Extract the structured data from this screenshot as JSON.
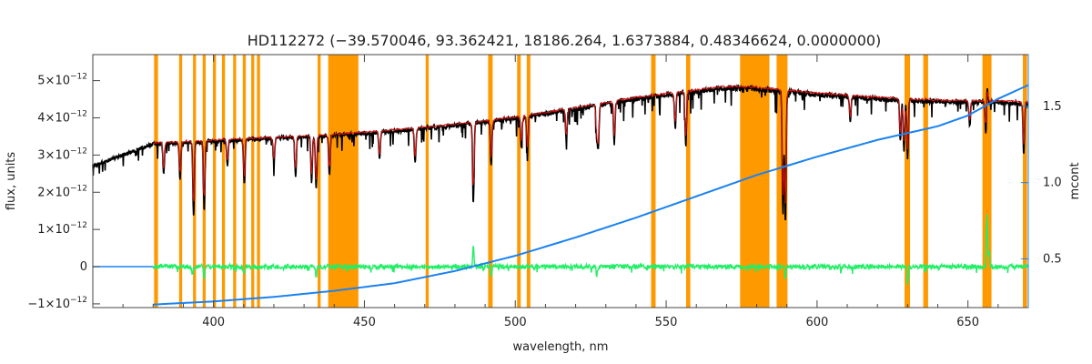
{
  "chart_data": {
    "type": "line",
    "title": "HD112272   (−39.570046, 93.362421, 18186.264, 1.6373884, 0.48346624, 0.0000000)",
    "xlabel": "wavelength, nm",
    "ylabel_left": "flux, units",
    "ylabel_right": "mcont",
    "xlim": [
      360,
      670
    ],
    "ylim_left": [
      -1.1e-12,
      5.7e-12
    ],
    "ylim_right": [
      0.18,
      1.84
    ],
    "x_ticks": [
      400,
      450,
      500,
      550,
      600,
      650
    ],
    "x_tick_labels": [
      "400",
      "450",
      "500",
      "550",
      "600",
      "650"
    ],
    "y_left_ticks": [
      -1e-12,
      0,
      1e-12,
      2e-12,
      3e-12,
      4e-12,
      5e-12
    ],
    "y_left_tick_labels": [
      {
        "mant": "−1×10",
        "exp": "−12"
      },
      {
        "mant": "0",
        "exp": ""
      },
      {
        "mant": "1×10",
        "exp": "−12"
      },
      {
        "mant": "2×10",
        "exp": "−12"
      },
      {
        "mant": "3×10",
        "exp": "−12"
      },
      {
        "mant": "4×10",
        "exp": "−12"
      },
      {
        "mant": "5×10",
        "exp": "−12"
      }
    ],
    "y_right_ticks": [
      0.5,
      1.0,
      1.5
    ],
    "y_right_tick_labels": [
      "0.5",
      "1.0",
      "1.5"
    ],
    "masked_regions": [
      [
        380.3,
        381.6
      ],
      [
        388.6,
        389.6
      ],
      [
        393.2,
        394.2
      ],
      [
        396.4,
        397.4
      ],
      [
        399.8,
        400.8
      ],
      [
        402.8,
        403.8
      ],
      [
        406.5,
        407.5
      ],
      [
        409.7,
        410.7
      ],
      [
        412.5,
        413.5
      ],
      [
        414.4,
        415.4
      ],
      [
        434.5,
        435.5
      ],
      [
        438.0,
        448.0
      ],
      [
        470.3,
        471.3
      ],
      [
        491.0,
        492.5
      ],
      [
        500.6,
        501.8
      ],
      [
        503.8,
        505.0
      ],
      [
        545.0,
        546.5
      ],
      [
        556.6,
        558.0
      ],
      [
        574.5,
        584.2
      ],
      [
        586.6,
        590.2
      ],
      [
        629.0,
        630.8
      ],
      [
        635.2,
        636.8
      ],
      [
        654.8,
        657.8
      ],
      [
        668.2,
        669.6
      ]
    ],
    "continuum": {
      "name": "mcont",
      "axis": "right",
      "x": [
        360,
        380,
        400,
        420,
        440,
        460,
        480,
        500,
        520,
        540,
        560,
        580,
        600,
        620,
        640,
        650,
        660,
        670
      ],
      "y": [
        0.46,
        0.2,
        0.22,
        0.25,
        0.29,
        0.34,
        0.42,
        0.52,
        0.64,
        0.77,
        0.91,
        1.05,
        1.17,
        1.28,
        1.37,
        1.44,
        1.55,
        1.64
      ]
    },
    "model_fit": {
      "color": "#dd1111",
      "x": [
        380,
        400,
        420,
        440,
        460,
        480,
        500,
        520,
        540,
        560,
        570,
        580,
        600,
        620,
        640,
        660,
        670
      ],
      "y": [
        3.35e-12,
        3.42e-12,
        3.5e-12,
        3.58e-12,
        3.7e-12,
        3.85e-12,
        4.05e-12,
        4.3e-12,
        4.58e-12,
        4.78e-12,
        4.88e-12,
        4.85e-12,
        4.7e-12,
        4.58e-12,
        4.5e-12,
        4.48e-12,
        4.45e-12
      ]
    },
    "observed": {
      "color": "#000000",
      "x_range": [
        360,
        670
      ],
      "continuum_x": [
        360,
        380,
        400,
        420,
        440,
        460,
        480,
        500,
        520,
        540,
        560,
        570,
        580,
        600,
        620,
        640,
        660,
        670
      ],
      "continuum_y": [
        2.75e-12,
        3.35e-12,
        3.42e-12,
        3.5e-12,
        3.58e-12,
        3.7e-12,
        3.85e-12,
        4.05e-12,
        4.3e-12,
        4.58e-12,
        4.78e-12,
        4.88e-12,
        4.85e-12,
        4.7e-12,
        4.58e-12,
        4.5e-12,
        4.48e-12,
        4.45e-12
      ],
      "absorption_lines": [
        [
          383.5,
          0.25
        ],
        [
          388.9,
          0.3
        ],
        [
          393.4,
          0.6
        ],
        [
          396.9,
          0.55
        ],
        [
          404.6,
          0.2
        ],
        [
          410.2,
          0.35
        ],
        [
          420.0,
          0.2
        ],
        [
          427.2,
          0.3
        ],
        [
          432.5,
          0.35
        ],
        [
          434.0,
          0.4
        ],
        [
          438.4,
          0.3
        ],
        [
          455.0,
          0.2
        ],
        [
          466.8,
          0.25
        ],
        [
          486.1,
          0.55
        ],
        [
          492.0,
          0.3
        ],
        [
          502.0,
          0.2
        ],
        [
          504.0,
          0.25
        ],
        [
          516.9,
          0.2
        ],
        [
          527.0,
          0.2
        ],
        [
          527.5,
          0.25
        ],
        [
          532.8,
          0.25
        ],
        [
          553.0,
          0.2
        ],
        [
          556.5,
          0.3
        ],
        [
          588.7,
          0.7
        ],
        [
          589.5,
          0.75
        ],
        [
          611.0,
          0.15
        ],
        [
          627.6,
          0.25
        ],
        [
          628.8,
          0.3
        ],
        [
          630.0,
          0.35
        ],
        [
          650.6,
          0.15
        ],
        [
          656.0,
          0.3
        ],
        [
          656.2,
          -0.25
        ],
        [
          668.5,
          0.3
        ]
      ]
    },
    "residuals": {
      "color": "#22ee66",
      "x_range": [
        380,
        670
      ],
      "spikes": [
        [
          393.0,
          -0.2
        ],
        [
          396.9,
          -0.35
        ],
        [
          410.0,
          -0.2
        ],
        [
          434.0,
          -0.25
        ],
        [
          486.1,
          0.6
        ],
        [
          492.0,
          -0.25
        ],
        [
          527.0,
          -0.2
        ],
        [
          589.5,
          -0.3
        ],
        [
          630.0,
          -0.45
        ],
        [
          656.3,
          1.35
        ],
        [
          657.0,
          0.4
        ]
      ]
    },
    "colors": {
      "mask": "#ff9900",
      "observed": "#000000",
      "model": "#dd1111",
      "continuum": "#1b82f0",
      "residuals": "#22ee66",
      "axis_right": "#1b82f0",
      "axis_left": "#222222"
    },
    "grid": false
  }
}
